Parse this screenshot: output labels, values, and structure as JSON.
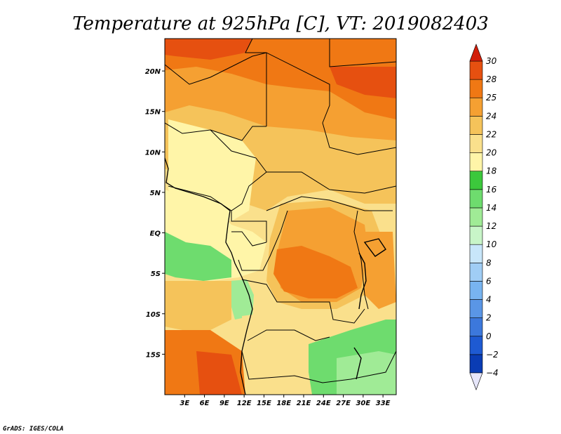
{
  "chart_data": {
    "type": "heatmap",
    "title": "Temperature at 925hPa [C], VT: 2019082403",
    "variable": "Temperature at 925hPa",
    "units": "C",
    "valid_time": "2019082403",
    "lon_range": [
      0,
      35
    ],
    "lat_range": [
      -20,
      24
    ],
    "x_ticks": [
      {
        "value": 3,
        "label": "3E"
      },
      {
        "value": 6,
        "label": "6E"
      },
      {
        "value": 9,
        "label": "9E"
      },
      {
        "value": 12,
        "label": "12E"
      },
      {
        "value": 15,
        "label": "15E"
      },
      {
        "value": 18,
        "label": "18E"
      },
      {
        "value": 21,
        "label": "21E"
      },
      {
        "value": 24,
        "label": "24E"
      },
      {
        "value": 27,
        "label": "27E"
      },
      {
        "value": 30,
        "label": "30E"
      },
      {
        "value": 33,
        "label": "33E"
      }
    ],
    "y_ticks": [
      {
        "value": 20,
        "label": "20N"
      },
      {
        "value": 15,
        "label": "15N"
      },
      {
        "value": 10,
        "label": "10N"
      },
      {
        "value": 5,
        "label": "5N"
      },
      {
        "value": 0,
        "label": "EQ"
      },
      {
        "value": -5,
        "label": "5S"
      },
      {
        "value": -10,
        "label": "10S"
      },
      {
        "value": -15,
        "label": "15S"
      }
    ],
    "colorbar": {
      "levels": [
        -4,
        -2,
        0,
        2,
        4,
        6,
        8,
        10,
        12,
        14,
        16,
        18,
        20,
        22,
        24,
        25,
        28,
        30
      ],
      "labels": [
        "−4",
        "−2",
        "0",
        "2",
        "4",
        "6",
        "8",
        "10",
        "12",
        "14",
        "16",
        "18",
        "20",
        "22",
        "24",
        "25",
        "28",
        "30"
      ],
      "colors": [
        "#0a0a78",
        "#0a3cb4",
        "#1e5ad2",
        "#3c78dc",
        "#5a96e6",
        "#78b4f0",
        "#a0cdf5",
        "#c8e6fa",
        "#c8f5c8",
        "#a0eb96",
        "#6edc6e",
        "#3cc83c",
        "#fff5a8",
        "#fae08c",
        "#f5c35a",
        "#f5a032",
        "#f07814",
        "#e65010",
        "#d21e0a"
      ],
      "under_color": "#e6e6fa",
      "over_color": "#d21e0a"
    }
  },
  "footer": "GrADS: IGES/COLA"
}
